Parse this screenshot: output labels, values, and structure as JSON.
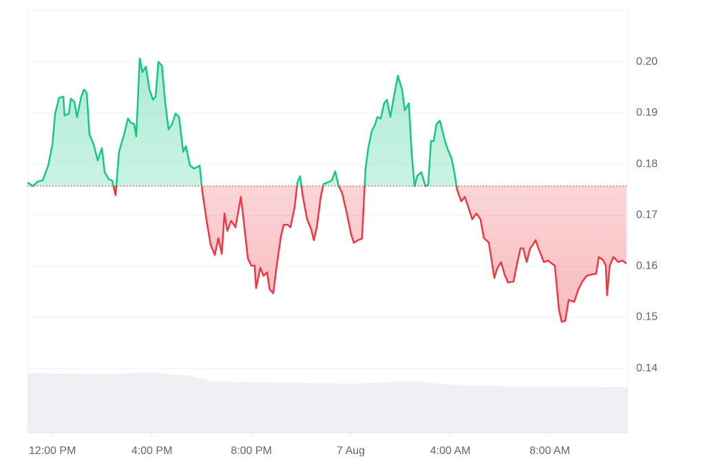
{
  "chart_data": {
    "type": "line",
    "x": [
      11.0,
      11.22,
      11.42,
      11.61,
      11.83,
      12.0,
      12.11,
      12.27,
      12.44,
      12.49,
      12.66,
      12.74,
      12.88,
      12.99,
      13.16,
      13.27,
      13.38,
      13.49,
      13.66,
      13.82,
      13.99,
      14.1,
      14.27,
      14.4,
      14.54,
      14.68,
      14.88,
      15.04,
      15.15,
      15.29,
      15.37,
      15.51,
      15.62,
      15.76,
      15.9,
      16.04,
      16.15,
      16.26,
      16.4,
      16.54,
      16.67,
      16.81,
      16.95,
      17.09,
      17.26,
      17.37,
      17.53,
      17.7,
      17.92,
      18.03,
      18.2,
      18.36,
      18.53,
      18.67,
      18.81,
      18.92,
      19.03,
      19.19,
      19.36,
      19.58,
      19.72,
      19.86,
      20.0,
      20.13,
      20.19,
      20.36,
      20.49,
      20.63,
      20.74,
      20.88,
      21.02,
      21.19,
      21.3,
      21.46,
      21.57,
      21.74,
      21.85,
      21.96,
      22.07,
      22.24,
      22.4,
      22.51,
      22.63,
      22.79,
      22.9,
      23.07,
      23.23,
      23.37,
      23.51,
      23.65,
      23.84,
      24.01,
      24.12,
      24.29,
      24.45,
      24.59,
      24.7,
      24.84,
      24.98,
      25.06,
      25.2,
      25.34,
      25.45,
      25.59,
      25.73,
      25.89,
      26.06,
      26.17,
      26.33,
      26.45,
      26.56,
      26.67,
      26.83,
      27.0,
      27.11,
      27.22,
      27.33,
      27.44,
      27.58,
      27.75,
      27.88,
      28.05,
      28.16,
      28.27,
      28.44,
      28.58,
      28.72,
      28.88,
      29.05,
      29.21,
      29.35,
      29.55,
      29.77,
      29.88,
      30.04,
      30.18,
      30.32,
      30.54,
      30.71,
      30.82,
      30.93,
      31.07,
      31.21,
      31.32,
      31.43,
      31.54,
      31.65,
      31.76,
      31.93,
      32.09,
      32.2,
      32.37,
      32.48,
      32.62,
      32.76,
      32.98,
      33.14,
      33.31,
      33.48,
      33.7,
      33.86,
      33.97,
      34.14,
      34.25,
      34.3,
      34.41,
      34.56,
      34.75,
      34.92,
      35.08
    ],
    "values": [
      0.1764,
      0.1757,
      0.1766,
      0.1768,
      0.1797,
      0.1838,
      0.1899,
      0.193,
      0.1932,
      0.1895,
      0.1899,
      0.1928,
      0.1922,
      0.1892,
      0.1932,
      0.1946,
      0.1939,
      0.1858,
      0.1838,
      0.1807,
      0.1831,
      0.1784,
      0.177,
      0.1768,
      0.1739,
      0.1824,
      0.1858,
      0.1889,
      0.1881,
      0.1878,
      0.1854,
      0.2007,
      0.198,
      0.1991,
      0.1946,
      0.1926,
      0.1932,
      0.2,
      0.1993,
      0.1919,
      0.1868,
      0.1878,
      0.1899,
      0.1892,
      0.1824,
      0.1835,
      0.1797,
      0.1791,
      0.1797,
      0.1746,
      0.1689,
      0.1642,
      0.1622,
      0.1655,
      0.1624,
      0.1703,
      0.1669,
      0.1689,
      0.1676,
      0.1736,
      0.1676,
      0.1615,
      0.1601,
      0.1601,
      0.1557,
      0.1597,
      0.1581,
      0.1588,
      0.1554,
      0.1547,
      0.1601,
      0.1659,
      0.1681,
      0.1681,
      0.1676,
      0.1716,
      0.1764,
      0.1776,
      0.1736,
      0.1692,
      0.1673,
      0.1651,
      0.1676,
      0.1736,
      0.1761,
      0.1764,
      0.1768,
      0.1786,
      0.1757,
      0.1743,
      0.1703,
      0.1662,
      0.1646,
      0.1651,
      0.1654,
      0.1791,
      0.1831,
      0.1865,
      0.1878,
      0.1892,
      0.1889,
      0.1919,
      0.1926,
      0.1892,
      0.1932,
      0.1973,
      0.1946,
      0.1905,
      0.1919,
      0.1818,
      0.1757,
      0.1777,
      0.1784,
      0.1757,
      0.1759,
      0.1845,
      0.1845,
      0.1878,
      0.1885,
      0.1851,
      0.1831,
      0.1811,
      0.1784,
      0.175,
      0.1727,
      0.1736,
      0.1716,
      0.1692,
      0.1703,
      0.1692,
      0.1655,
      0.1646,
      0.1577,
      0.1595,
      0.1608,
      0.1584,
      0.1568,
      0.157,
      0.1611,
      0.1635,
      0.1635,
      0.1608,
      0.1635,
      0.1642,
      0.1651,
      0.1635,
      0.1622,
      0.1608,
      0.1611,
      0.1605,
      0.1601,
      0.1514,
      0.1491,
      0.1493,
      0.1534,
      0.153,
      0.1554,
      0.157,
      0.1581,
      0.1584,
      0.1585,
      0.1618,
      0.1612,
      0.1601,
      0.1543,
      0.1601,
      0.1618,
      0.1608,
      0.1611,
      0.1605
    ],
    "baseline": 0.1757,
    "up_color": "#16c784",
    "down_color": "#ea3943",
    "volume": {
      "color": "#eef0f4",
      "x": [
        11.0,
        14.0,
        16.0,
        17.5,
        18.5,
        24.0,
        26.5,
        28.0,
        30.5,
        35.14
      ],
      "values": [
        0.1391,
        0.1389,
        0.1392,
        0.1385,
        0.1374,
        0.137,
        0.1375,
        0.1368,
        0.1364,
        0.1363
      ]
    },
    "xlim": [
      11,
      35.14
    ],
    "xticks": [
      {
        "value": 12,
        "label": "12:00 PM"
      },
      {
        "value": 16,
        "label": "4:00 PM"
      },
      {
        "value": 20,
        "label": "8:00 PM"
      },
      {
        "value": 24,
        "label": "7 Aug"
      },
      {
        "value": 28,
        "label": "4:00 AM"
      },
      {
        "value": 32,
        "label": "8:00 AM"
      }
    ],
    "ylim": [
      0.1274,
      0.2101
    ],
    "yticks": [
      {
        "value": 0.2,
        "label": "0.20"
      },
      0.19,
      0.18,
      0.17,
      0.16,
      0.15,
      0.14
    ],
    "grid": true
  }
}
